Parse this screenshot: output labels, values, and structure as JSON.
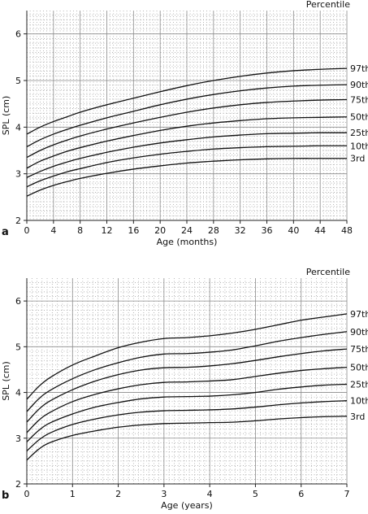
{
  "chart_data": [
    {
      "type": "line",
      "panel_label": "a",
      "title": "Percentile",
      "xlabel": "Age (months)",
      "ylabel": "SPL (cm)",
      "xlim": [
        0,
        48
      ],
      "ylim": [
        2,
        6.5
      ],
      "x_ticks": [
        0,
        4,
        8,
        12,
        16,
        20,
        24,
        28,
        32,
        36,
        40,
        44,
        48
      ],
      "y_ticks": [
        2,
        3,
        4,
        5,
        6
      ],
      "grid": true,
      "x": [
        0,
        2,
        4,
        6,
        8,
        12,
        16,
        20,
        24,
        28,
        32,
        36,
        40,
        44,
        48
      ],
      "series": [
        {
          "name": "97th",
          "values": [
            3.85,
            4.0,
            4.12,
            4.22,
            4.32,
            4.48,
            4.62,
            4.76,
            4.89,
            5.0,
            5.09,
            5.16,
            5.21,
            5.24,
            5.26
          ]
        },
        {
          "name": "90th",
          "values": [
            3.58,
            3.73,
            3.85,
            3.95,
            4.04,
            4.2,
            4.34,
            4.48,
            4.6,
            4.7,
            4.78,
            4.84,
            4.88,
            4.9,
            4.91
          ]
        },
        {
          "name": "75th",
          "values": [
            3.35,
            3.5,
            3.62,
            3.72,
            3.81,
            3.96,
            4.09,
            4.21,
            4.32,
            4.41,
            4.48,
            4.53,
            4.56,
            4.58,
            4.59
          ]
        },
        {
          "name": "50th",
          "values": [
            3.12,
            3.27,
            3.38,
            3.48,
            3.56,
            3.7,
            3.82,
            3.93,
            4.02,
            4.09,
            4.14,
            4.18,
            4.2,
            4.21,
            4.22
          ]
        },
        {
          "name": "25th",
          "values": [
            2.92,
            3.05,
            3.16,
            3.25,
            3.33,
            3.46,
            3.57,
            3.66,
            3.73,
            3.79,
            3.83,
            3.86,
            3.87,
            3.88,
            3.88
          ]
        },
        {
          "name": "10th",
          "values": [
            2.72,
            2.85,
            2.95,
            3.04,
            3.11,
            3.24,
            3.34,
            3.42,
            3.48,
            3.53,
            3.56,
            3.58,
            3.59,
            3.6,
            3.6
          ]
        },
        {
          "name": "3rd",
          "values": [
            2.52,
            2.65,
            2.75,
            2.83,
            2.9,
            3.01,
            3.1,
            3.17,
            3.23,
            3.27,
            3.3,
            3.32,
            3.33,
            3.33,
            3.33
          ]
        }
      ]
    },
    {
      "type": "line",
      "panel_label": "b",
      "title": "Percentile",
      "xlabel": "Age (years)",
      "ylabel": "SPL (cm)",
      "xlim": [
        0,
        7
      ],
      "ylim": [
        2,
        6.5
      ],
      "x_ticks": [
        0,
        1,
        2,
        3,
        4,
        5,
        6,
        7
      ],
      "y_ticks": [
        2,
        3,
        4,
        5,
        6
      ],
      "grid": true,
      "x": [
        0,
        0.25,
        0.5,
        1,
        1.5,
        2,
        2.5,
        3,
        3.5,
        4,
        4.5,
        5,
        5.5,
        6,
        6.5,
        7
      ],
      "series": [
        {
          "name": "97th",
          "values": [
            3.85,
            4.12,
            4.32,
            4.6,
            4.8,
            4.98,
            5.1,
            5.18,
            5.2,
            5.24,
            5.3,
            5.38,
            5.48,
            5.58,
            5.65,
            5.72
          ]
        },
        {
          "name": "90th",
          "values": [
            3.58,
            3.85,
            4.04,
            4.3,
            4.5,
            4.65,
            4.77,
            4.84,
            4.85,
            4.88,
            4.93,
            5.02,
            5.12,
            5.2,
            5.27,
            5.33
          ]
        },
        {
          "name": "75th",
          "values": [
            3.35,
            3.62,
            3.81,
            4.06,
            4.25,
            4.39,
            4.49,
            4.54,
            4.55,
            4.58,
            4.63,
            4.7,
            4.78,
            4.85,
            4.91,
            4.95
          ]
        },
        {
          "name": "50th",
          "values": [
            3.12,
            3.38,
            3.56,
            3.8,
            3.96,
            4.08,
            4.17,
            4.22,
            4.23,
            4.25,
            4.28,
            4.35,
            4.42,
            4.48,
            4.52,
            4.55
          ]
        },
        {
          "name": "25th",
          "values": [
            2.92,
            3.16,
            3.33,
            3.53,
            3.68,
            3.78,
            3.86,
            3.9,
            3.91,
            3.92,
            3.95,
            4.0,
            4.07,
            4.12,
            4.16,
            4.18
          ]
        },
        {
          "name": "10th",
          "values": [
            2.72,
            2.95,
            3.11,
            3.3,
            3.42,
            3.51,
            3.57,
            3.6,
            3.61,
            3.62,
            3.64,
            3.68,
            3.73,
            3.77,
            3.8,
            3.82
          ]
        },
        {
          "name": "3rd",
          "values": [
            2.52,
            2.75,
            2.9,
            3.06,
            3.16,
            3.24,
            3.29,
            3.32,
            3.33,
            3.34,
            3.35,
            3.38,
            3.42,
            3.45,
            3.47,
            3.48
          ]
        }
      ]
    }
  ],
  "colors": {
    "line": "#111111",
    "grid_major": "#8a8a8a",
    "grid_minor": "#9a9a9a",
    "background": "#ffffff"
  }
}
